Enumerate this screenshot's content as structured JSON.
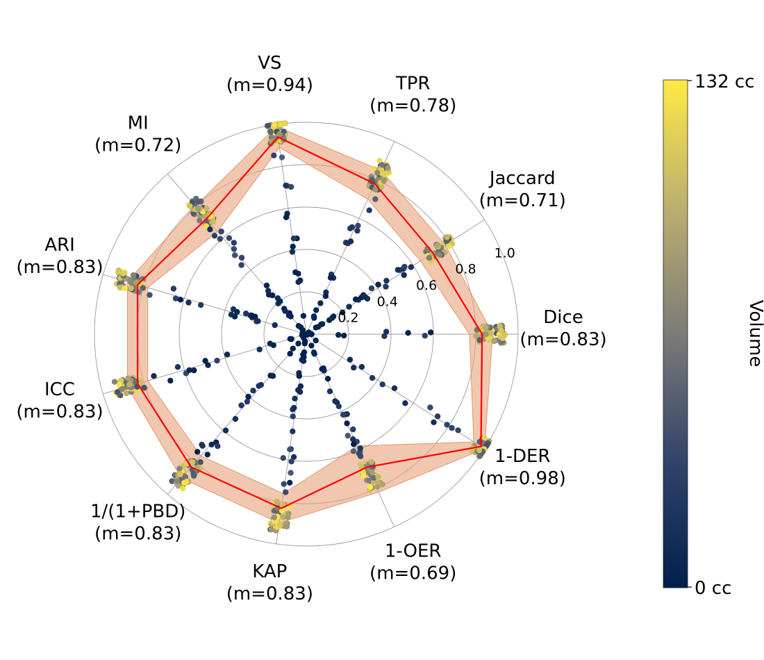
{
  "chart_data": {
    "type": "radar",
    "axes": [
      {
        "name": "Dice",
        "label": "(m=0.83)",
        "mean": 0.83
      },
      {
        "name": "Jaccard",
        "label": "(m=0.71)",
        "mean": 0.71
      },
      {
        "name": "TPR",
        "label": "(m=0.78)",
        "mean": 0.78
      },
      {
        "name": "VS",
        "label": "(m=0.94)",
        "mean": 0.94
      },
      {
        "name": "MI",
        "label": "(m=0.72)",
        "mean": 0.72
      },
      {
        "name": "ARI",
        "label": "(m=0.83)",
        "mean": 0.83
      },
      {
        "name": "ICC",
        "label": "(m=0.83)",
        "mean": 0.83
      },
      {
        "name": "1/(1+PBD)",
        "label": "(m=0.83)",
        "mean": 0.83
      },
      {
        "name": "KAP",
        "label": "(m=0.83)",
        "mean": 0.83
      },
      {
        "name": "1-OER",
        "label": "(m=0.69)",
        "mean": 0.69
      },
      {
        "name": "1-DER",
        "label": "(m=0.98)",
        "mean": 0.98
      }
    ],
    "band_low": [
      0.77,
      0.64,
      0.7,
      0.89,
      0.64,
      0.78,
      0.78,
      0.76,
      0.76,
      0.58,
      0.94
    ],
    "band_high": [
      0.88,
      0.78,
      0.85,
      0.99,
      0.8,
      0.88,
      0.88,
      0.9,
      0.9,
      0.82,
      1.0
    ],
    "radial_ticks": [
      0.2,
      0.4,
      0.6,
      0.8,
      1.0
    ],
    "radial_tick_labels": [
      "0.2",
      "0.4",
      "0.6",
      "0.8",
      "1.0"
    ],
    "rlim": [
      0,
      1.0
    ],
    "mean_line_color": "#ff0000",
    "band_color": "#e8a27a",
    "grid": true,
    "colorbar": {
      "label": "Volume",
      "min_label": "0 cc",
      "max_label": "132 cc",
      "min": 0,
      "max": 132,
      "colormap": "cividis"
    },
    "scatter_note_points_per_axis": 70
  }
}
